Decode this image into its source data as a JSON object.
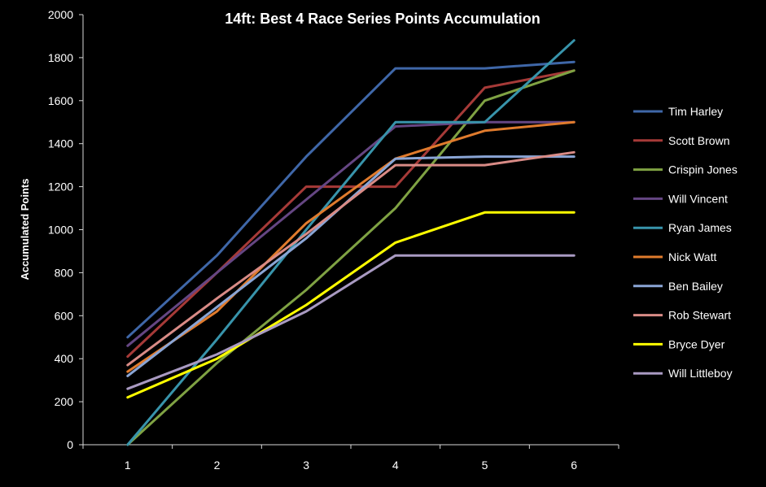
{
  "chart_data": {
    "type": "line",
    "title": "14ft: Best 4 Race Series Points Accumulation",
    "xlabel": "",
    "ylabel": "Accumulated Points",
    "categories": [
      "1",
      "2",
      "3",
      "4",
      "5",
      "6"
    ],
    "ylim": [
      0,
      2000
    ],
    "yticks": [
      0,
      200,
      400,
      600,
      800,
      1000,
      1200,
      1400,
      1600,
      1800,
      2000
    ],
    "grid": false,
    "legend_position": "right",
    "series": [
      {
        "name": "Tim Harley",
        "color": "#3f67a8",
        "values": [
          500,
          880,
          1340,
          1750,
          1750,
          1780
        ]
      },
      {
        "name": "Scott Brown",
        "color": "#a63a38",
        "values": [
          410,
          800,
          1200,
          1200,
          1660,
          1740
        ]
      },
      {
        "name": "Crispin Jones",
        "color": "#7fa243",
        "values": [
          0,
          380,
          720,
          1100,
          1600,
          1740
        ]
      },
      {
        "name": "Will Vincent",
        "color": "#654683",
        "values": [
          460,
          800,
          1140,
          1480,
          1500,
          1500
        ]
      },
      {
        "name": "Ryan James",
        "color": "#3894ab",
        "values": [
          0,
          490,
          1000,
          1500,
          1500,
          1880
        ]
      },
      {
        "name": "Nick Watt",
        "color": "#e07b2d",
        "values": [
          340,
          620,
          1030,
          1330,
          1460,
          1500
        ]
      },
      {
        "name": "Ben Bailey",
        "color": "#8aa5d5",
        "values": [
          320,
          640,
          960,
          1330,
          1340,
          1340
        ]
      },
      {
        "name": "Rob Stewart",
        "color": "#d98b86",
        "values": [
          370,
          680,
          980,
          1300,
          1300,
          1360
        ]
      },
      {
        "name": "Bryce Dyer",
        "color": "#ffff00",
        "values": [
          220,
          400,
          650,
          940,
          1080,
          1080
        ]
      },
      {
        "name": "Will Littleboy",
        "color": "#a99ac2",
        "values": [
          260,
          420,
          620,
          880,
          880,
          880
        ]
      }
    ]
  }
}
